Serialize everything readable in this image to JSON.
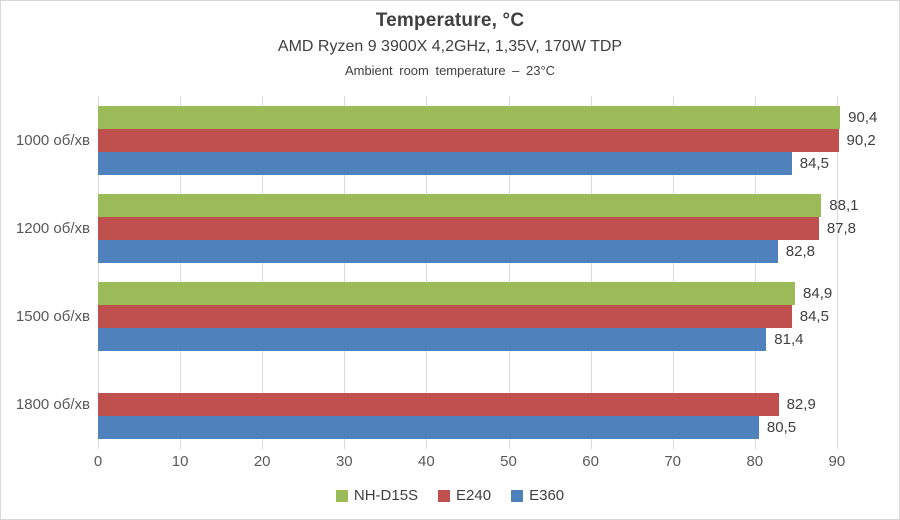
{
  "chart_data": {
    "type": "bar",
    "orientation": "horizontal",
    "title": "Temperature, °C",
    "subtitle": "AMD Ryzen 9 3900X 4,2GHz, 1,35V, 170W TDP",
    "subtitle2": "Ambient room temperature – 23°C",
    "categories": [
      "1000 об/хв",
      "1200 об/хв",
      "1500 об/хв",
      "1800 об/хв"
    ],
    "series": [
      {
        "name": "NH-D15S",
        "color": "#9BBB59",
        "values": [
          90.4,
          88.1,
          84.9,
          null
        ],
        "labels": [
          "90,4",
          "88,1",
          "84,9",
          ""
        ]
      },
      {
        "name": "E240",
        "color": "#C0504D",
        "values": [
          90.2,
          87.8,
          84.5,
          82.9
        ],
        "labels": [
          "90,2",
          "87,8",
          "84,5",
          "82,9"
        ]
      },
      {
        "name": "E360",
        "color": "#4F81BD",
        "values": [
          84.5,
          82.8,
          81.4,
          80.5
        ],
        "labels": [
          "84,5",
          "82,8",
          "81,4",
          "80,5"
        ]
      }
    ],
    "x_axis": {
      "min": 0,
      "tick_interval": 10,
      "tick_labels": [
        "0",
        "10",
        "20",
        "30",
        "40",
        "50",
        "60",
        "70",
        "80",
        "90"
      ],
      "grid": true,
      "gridline_color": "#D9D9D9"
    },
    "legend_position": "bottom",
    "value_decimal_separator": ","
  }
}
